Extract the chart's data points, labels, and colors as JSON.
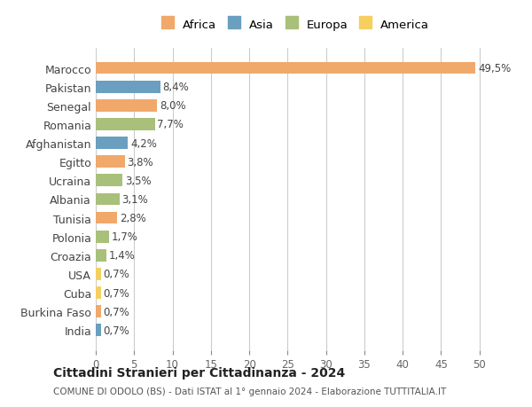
{
  "countries": [
    "Marocco",
    "Pakistan",
    "Senegal",
    "Romania",
    "Afghanistan",
    "Egitto",
    "Ucraina",
    "Albania",
    "Tunisia",
    "Polonia",
    "Croazia",
    "USA",
    "Cuba",
    "Burkina Faso",
    "India"
  ],
  "values": [
    49.5,
    8.4,
    8.0,
    7.7,
    4.2,
    3.8,
    3.5,
    3.1,
    2.8,
    1.7,
    1.4,
    0.7,
    0.7,
    0.7,
    0.7
  ],
  "labels": [
    "49,5%",
    "8,4%",
    "8,0%",
    "7,7%",
    "4,2%",
    "3,8%",
    "3,5%",
    "3,1%",
    "2,8%",
    "1,7%",
    "1,4%",
    "0,7%",
    "0,7%",
    "0,7%",
    "0,7%"
  ],
  "continents": [
    "Africa",
    "Asia",
    "Africa",
    "Europa",
    "Asia",
    "Africa",
    "Europa",
    "Europa",
    "Africa",
    "Europa",
    "Europa",
    "America",
    "America",
    "Africa",
    "Asia"
  ],
  "colors": {
    "Africa": "#F0B27A",
    "Asia": "#7FB3D3",
    "Europa": "#ABEBC6",
    "America": "#F9E79F"
  },
  "legend_colors": {
    "Africa": "#F0B27A",
    "Asia": "#5D9FBF",
    "Europa": "#A8C8A0",
    "America": "#F5D76E"
  },
  "title": "Cittadini Stranieri per Cittadinanza - 2024",
  "subtitle": "COMUNE DI ODOLO (BS) - Dati ISTAT al 1° gennaio 2024 - Elaborazione TUTTITALIA.IT",
  "xlim": [
    0,
    52
  ],
  "xticks": [
    0,
    5,
    10,
    15,
    20,
    25,
    30,
    35,
    40,
    45,
    50
  ],
  "bg_color": "#FFFFFF",
  "grid_color": "#CCCCCC"
}
